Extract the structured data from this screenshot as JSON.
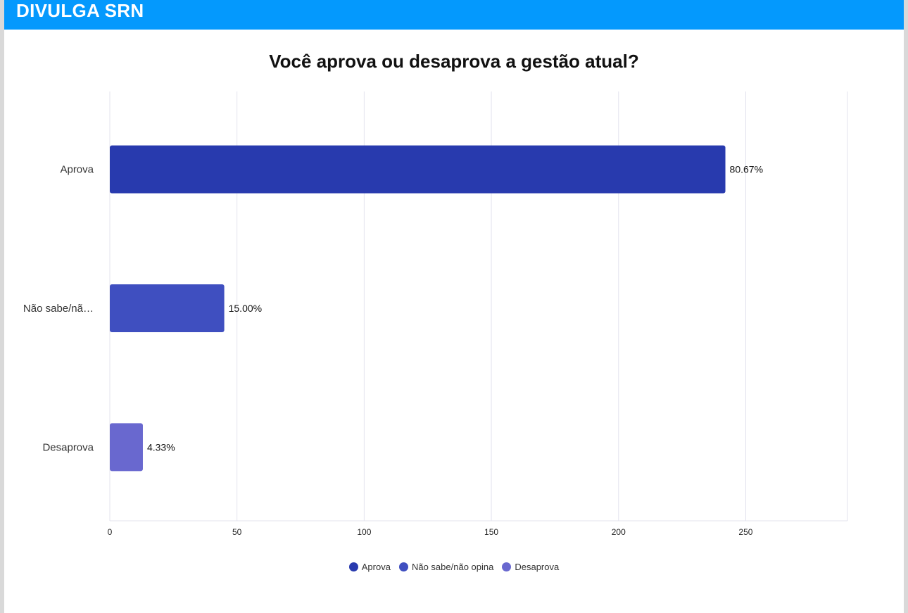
{
  "header": {
    "brand": "DIVULGA SRN"
  },
  "chart_data": {
    "type": "bar",
    "orientation": "horizontal",
    "title": "Você aprova ou desaprova a gestão atual?",
    "categories": [
      "Aprova",
      "Não sabe/não opina",
      "Desaprova"
    ],
    "category_tick_labels": [
      "Aprova",
      "Não sabe/nã…",
      "Desaprova"
    ],
    "values": [
      242,
      45,
      13
    ],
    "data_labels": [
      "80.67%",
      "15.00%",
      "4.33%"
    ],
    "colors": [
      "#283aae",
      "#3f4fc0",
      "#6968cf"
    ],
    "xlim": [
      0,
      290
    ],
    "x_ticks": [
      0,
      50,
      100,
      150,
      200,
      250
    ],
    "grid": true,
    "legend": {
      "placement": "bottom",
      "entries": [
        "Aprova",
        "Não sabe/não opina",
        "Desaprova"
      ]
    }
  }
}
